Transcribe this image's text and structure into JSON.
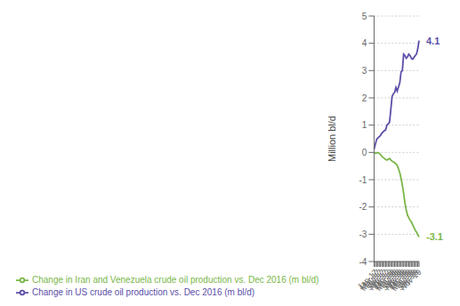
{
  "chart_data": {
    "type": "line",
    "title": "",
    "y_label": "Million bl/d",
    "categories": [
      "Jan-17",
      null,
      "Mar-17",
      null,
      "May-17",
      null,
      "Jul-17",
      null,
      "Sep-17",
      null,
      "Nov-17",
      null,
      "Jan-18",
      null,
      "Mar-18",
      null,
      "May-18",
      null,
      "Jul-18",
      null,
      "Sep-18",
      null,
      "Nov-18",
      null,
      "Jan-19",
      null,
      "Mar-19",
      null,
      "May-19",
      null,
      "Jul-19",
      null,
      "Sep-19",
      null,
      "Nov-19",
      null
    ],
    "series": [
      {
        "name": "Change in Iran and Venezuela crude oil production vs. Dec 2016 (m bl/d)",
        "color": "#7ab648",
        "values": [
          -0.02,
          -0.03,
          -0.02,
          -0.01,
          -0.03,
          -0.08,
          -0.14,
          -0.18,
          -0.22,
          -0.26,
          -0.28,
          -0.25,
          -0.22,
          -0.28,
          -0.32,
          -0.35,
          -0.38,
          -0.42,
          -0.48,
          -0.6,
          -0.75,
          -0.95,
          -1.2,
          -1.5,
          -1.85,
          -2.1,
          -2.3,
          -2.4,
          -2.48,
          -2.55,
          -2.65,
          -2.75,
          -2.85,
          -2.92,
          -3.02,
          -3.1
        ]
      },
      {
        "name": "Change in US crude oil production vs. Dec 2016 (m bl/d)",
        "color": "#5b4ea8",
        "values": [
          0.12,
          0.3,
          0.48,
          0.53,
          0.58,
          0.62,
          0.7,
          0.75,
          0.8,
          0.82,
          1.0,
          1.05,
          1.1,
          1.55,
          2.05,
          2.15,
          2.2,
          2.38,
          2.25,
          2.4,
          2.55,
          2.95,
          3.0,
          3.6,
          3.55,
          3.45,
          3.5,
          3.6,
          3.55,
          3.45,
          3.42,
          3.48,
          3.55,
          3.6,
          3.8,
          4.1
        ]
      }
    ],
    "annotations": [
      {
        "text": "-3.1",
        "series": "Change in Iran and Venezuela crude oil production vs. Dec 2016 (m bl/d)"
      },
      {
        "text": "4.1",
        "series": "Change in US crude oil production vs. Dec 2016 (m bl/d)"
      }
    ],
    "ylim": [
      -4,
      5
    ],
    "yticks": [
      -4,
      -3,
      -2,
      -1,
      0,
      1,
      2,
      3,
      4,
      5
    ],
    "grid": true,
    "legend": "bottom"
  }
}
